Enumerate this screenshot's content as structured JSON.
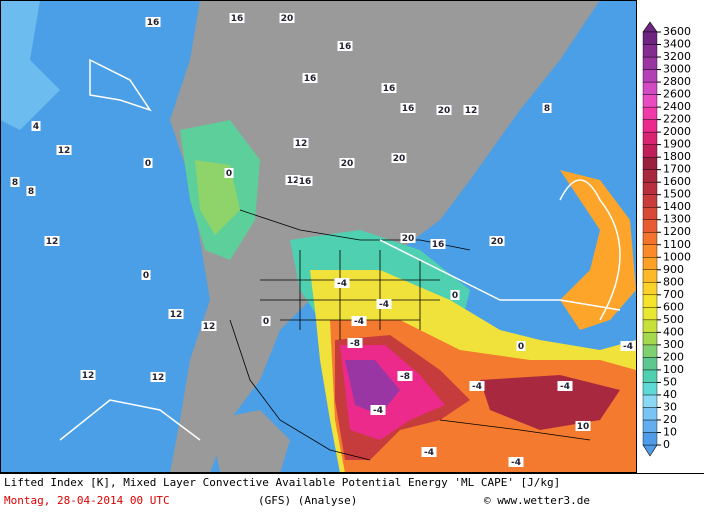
{
  "legend": {
    "levels": [
      0,
      10,
      20,
      30,
      40,
      50,
      100,
      200,
      300,
      400,
      500,
      600,
      700,
      800,
      900,
      1000,
      1100,
      1200,
      1300,
      1400,
      1500,
      1600,
      1700,
      1800,
      1900,
      2000,
      2200,
      2400,
      2600,
      2800,
      3000,
      3200,
      3400,
      3600
    ],
    "colors": [
      "#4f9be8",
      "#62aeef",
      "#78c4f4",
      "#8ad8f4",
      "#5fd9d8",
      "#4fd0b0",
      "#5cc890",
      "#7fd070",
      "#a3d84f",
      "#c8e03a",
      "#e8e832",
      "#f6e42c",
      "#fcd12a",
      "#fdb928",
      "#fda026",
      "#fb8a2a",
      "#f4742e",
      "#e85c32",
      "#d84a38",
      "#c83c3c",
      "#b8303e",
      "#a82840",
      "#9a2040",
      "#c0205a",
      "#d82472",
      "#ec2a8c",
      "#f03aaa",
      "#e84cc0",
      "#d24ac4",
      "#b440b6",
      "#9a36a4",
      "#842c90",
      "#6e2480"
    ]
  },
  "contour_labels": [
    16,
    16,
    20,
    16,
    16,
    16,
    16,
    20,
    12,
    8,
    12,
    20,
    20,
    12,
    16,
    20,
    16,
    20,
    4,
    12,
    0,
    0,
    0,
    8,
    8,
    12,
    12,
    12,
    12,
    12,
    0,
    -4,
    -4,
    -4,
    -8,
    -8,
    -4,
    -4,
    -4,
    -4,
    -4,
    -4,
    0,
    0,
    10
  ],
  "caption": {
    "title": "Lifted Index [K], Mixed Layer Convective Available Potential Energy 'ML CAPE' [J/kg]",
    "date": "Montag, 28-04-2014  00 UTC",
    "model": "(GFS)  (Analyse)",
    "credit": "© www.wetter3.de"
  }
}
